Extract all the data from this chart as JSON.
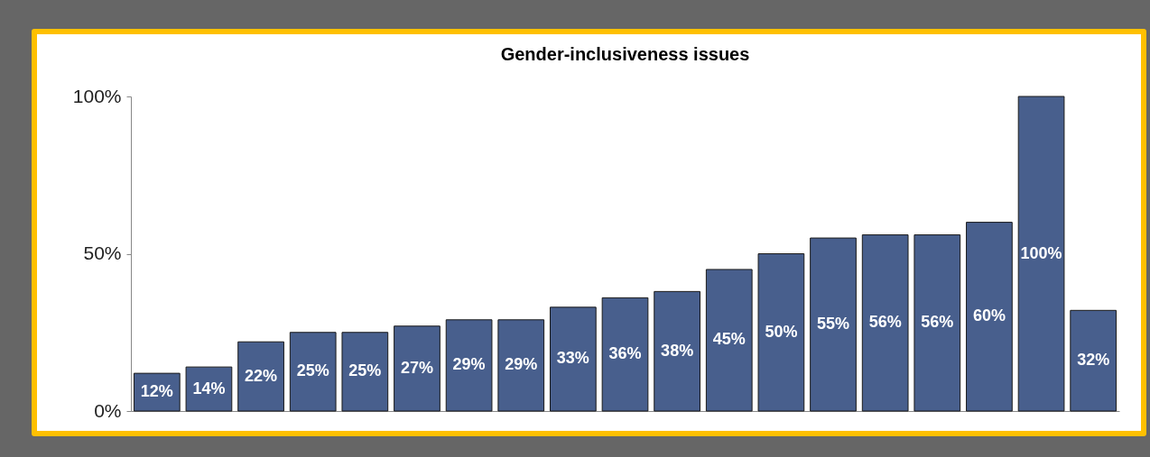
{
  "chart_data": {
    "type": "bar",
    "title": "Gender-inclusiveness issues",
    "categories": [
      null,
      null,
      null,
      null,
      null,
      null,
      null,
      null,
      null,
      null,
      null,
      null,
      null,
      null,
      null,
      null,
      null,
      null,
      null
    ],
    "values": [
      12,
      14,
      22,
      25,
      25,
      27,
      29,
      29,
      33,
      36,
      38,
      45,
      50,
      55,
      56,
      56,
      60,
      100,
      32
    ],
    "value_labels": [
      "12%",
      "14%",
      "22%",
      "25%",
      "25%",
      "27%",
      "29%",
      "29%",
      "33%",
      "36%",
      "38%",
      "45%",
      "50%",
      "55%",
      "56%",
      "56%",
      "60%",
      "100%",
      "32%"
    ],
    "color": "#485f8d",
    "ylim": [
      0,
      100
    ],
    "yticks": [
      {
        "value": 0,
        "label": "0%"
      },
      {
        "value": 50,
        "label": "50%"
      },
      {
        "value": 100,
        "label": "100%"
      }
    ],
    "tick_labels": "y"
  }
}
